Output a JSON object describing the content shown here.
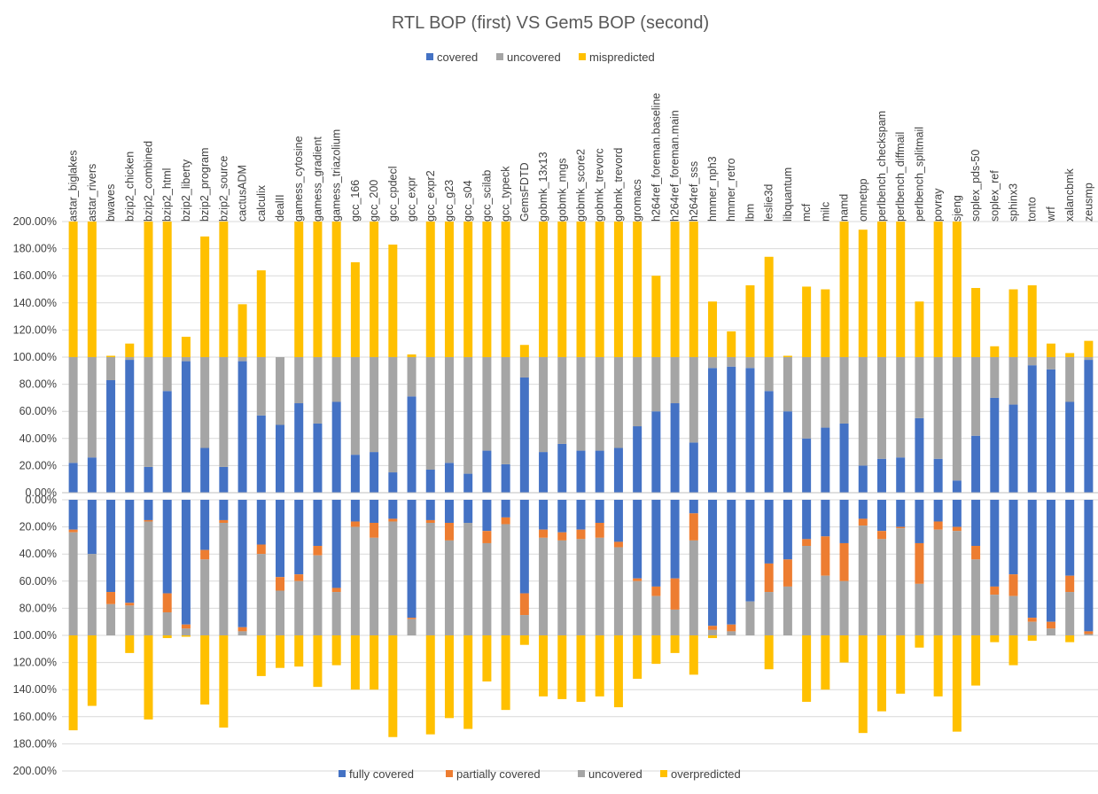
{
  "chart_data": [
    {
      "type": "bar",
      "stacked": true,
      "title": "RTL BOP (first) VS Gem5 BOP (second)",
      "legend_position": "top",
      "ylim": [
        0,
        200
      ],
      "y_ticks": [
        "200.00%",
        "180.00%",
        "160.00%",
        "140.00%",
        "120.00%",
        "100.00%",
        "80.00%",
        "60.00%",
        "40.00%",
        "20.00%",
        "0.00%"
      ],
      "grid": true,
      "categories": [
        "astar_biglakes",
        "astar_rivers",
        "bwaves",
        "bzip2_chicken",
        "bzip2_combined",
        "bzip2_html",
        "bzip2_liberty",
        "bzip2_program",
        "bzip2_source",
        "cactusADM",
        "calculix",
        "dealII",
        "gamess_cytosine",
        "gamess_gradient",
        "gamess_triazolium",
        "gcc_166",
        "gcc_200",
        "gcc_cpdecl",
        "gcc_expr",
        "gcc_expr2",
        "gcc_g23",
        "gcc_s04",
        "gcc_scilab",
        "gcc_typeck",
        "GemsFDTD",
        "gobmk_13x13",
        "gobmk_nngs",
        "gobmk_score2",
        "gobmk_trevorc",
        "gobmk_trevord",
        "gromacs",
        "h264ref_foreman.baseline",
        "h264ref_foreman.main",
        "h264ref_sss",
        "hmmer_nph3",
        "hmmer_retro",
        "lbm",
        "leslie3d",
        "libquantum",
        "mcf",
        "milc",
        "namd",
        "omnetpp",
        "perlbench_checkspam",
        "perlbench_diffmail",
        "perlbench_splitmail",
        "povray",
        "sjeng",
        "soplex_pds-50",
        "soplex_ref",
        "sphinx3",
        "tonto",
        "wrf",
        "xalancbmk",
        "zeusmp"
      ],
      "series": [
        {
          "name": "covered",
          "color": "#4472C4",
          "values": [
            22,
            26,
            83,
            98,
            19,
            75,
            97,
            33,
            19,
            97,
            57,
            50,
            66,
            51,
            67,
            28,
            30,
            15,
            71,
            17,
            22,
            14,
            31,
            21,
            85,
            30,
            36,
            31,
            31,
            33,
            49,
            60,
            66,
            37,
            92,
            93,
            92,
            75,
            60,
            40,
            48,
            51,
            20,
            25,
            26,
            55,
            25,
            9,
            42,
            70,
            65,
            94,
            91,
            67,
            98
          ]
        },
        {
          "name": "uncovered",
          "color": "#A5A5A5",
          "values": [
            78,
            74,
            17,
            2,
            81,
            25,
            3,
            67,
            81,
            3,
            43,
            50,
            34,
            49,
            33,
            72,
            70,
            85,
            29,
            83,
            78,
            86,
            69,
            79,
            15,
            70,
            64,
            69,
            69,
            67,
            51,
            40,
            34,
            63,
            8,
            7,
            8,
            25,
            40,
            60,
            52,
            49,
            80,
            75,
            74,
            45,
            75,
            91,
            58,
            30,
            35,
            6,
            9,
            33,
            2
          ]
        },
        {
          "name": "mispredicted",
          "color": "#FFC000",
          "values": [
            100,
            100,
            1,
            10,
            100,
            100,
            15,
            89,
            100,
            39,
            64,
            0,
            100,
            100,
            100,
            70,
            100,
            83,
            2,
            100,
            100,
            100,
            100,
            100,
            9,
            100,
            100,
            100,
            100,
            100,
            100,
            60,
            100,
            100,
            41,
            19,
            53,
            74,
            1,
            52,
            50,
            100,
            94,
            100,
            100,
            41,
            100,
            100,
            51,
            8,
            50,
            53,
            10,
            3,
            12
          ]
        }
      ]
    },
    {
      "type": "bar",
      "stacked": true,
      "title": "",
      "legend_position": "bottom",
      "ylim": [
        0,
        200
      ],
      "y_axis_inverted": true,
      "y_ticks": [
        "0.00%",
        "20.00%",
        "40.00%",
        "60.00%",
        "80.00%",
        "100.00%",
        "120.00%",
        "140.00%",
        "160.00%",
        "180.00%",
        "200.00%"
      ],
      "grid": true,
      "categories": [
        "astar_biglakes",
        "astar_rivers",
        "bwaves",
        "bzip2_chicken",
        "bzip2_combined",
        "bzip2_html",
        "bzip2_liberty",
        "bzip2_program",
        "bzip2_source",
        "cactusADM",
        "calculix",
        "dealII",
        "gamess_cytosine",
        "gamess_gradient",
        "gamess_triazolium",
        "gcc_166",
        "gcc_200",
        "gcc_cpdecl",
        "gcc_expr",
        "gcc_expr2",
        "gcc_g23",
        "gcc_s04",
        "gcc_scilab",
        "gcc_typeck",
        "GemsFDTD",
        "gobmk_13x13",
        "gobmk_nngs",
        "gobmk_score2",
        "gobmk_trevorc",
        "gobmk_trevord",
        "gromacs",
        "h264ref_foreman.baseline",
        "h264ref_foreman.main",
        "h264ref_sss",
        "hmmer_nph3",
        "hmmer_retro",
        "lbm",
        "leslie3d",
        "libquantum",
        "mcf",
        "milc",
        "namd",
        "omnetpp",
        "perlbench_checkspam",
        "perlbench_diffmail",
        "perlbench_splitmail",
        "povray",
        "sjeng",
        "soplex_pds-50",
        "soplex_ref",
        "sphinx3",
        "tonto",
        "wrf",
        "xalancbmk",
        "zeusmp"
      ],
      "series": [
        {
          "name": "fully covered",
          "color": "#4472C4",
          "values": [
            22,
            40,
            68,
            76,
            15,
            69,
            92,
            37,
            15,
            94,
            33,
            57,
            55,
            34,
            65,
            16,
            17,
            14,
            87,
            15,
            17,
            17,
            23,
            13,
            69,
            22,
            24,
            22,
            17,
            31,
            58,
            64,
            58,
            10,
            93,
            92,
            75,
            47,
            44,
            29,
            27,
            32,
            14,
            23,
            20,
            32,
            16,
            20,
            34,
            64,
            55,
            87,
            90,
            56,
            97
          ]
        },
        {
          "name": "partially covered",
          "color": "#ED7D31",
          "values": [
            2,
            0,
            9,
            2,
            1,
            14,
            3,
            7,
            2,
            3,
            7,
            10,
            5,
            7,
            3,
            4,
            11,
            2,
            1,
            2,
            13,
            0,
            9,
            5,
            16,
            6,
            6,
            7,
            11,
            4,
            2,
            7,
            23,
            20,
            3,
            5,
            0,
            21,
            20,
            5,
            29,
            28,
            5,
            6,
            1,
            30,
            6,
            3,
            10,
            6,
            16,
            3,
            5,
            12,
            2
          ]
        },
        {
          "name": "uncovered",
          "color": "#A5A5A5",
          "values": [
            76,
            60,
            23,
            22,
            84,
            17,
            5,
            56,
            83,
            3,
            60,
            33,
            40,
            59,
            32,
            80,
            72,
            84,
            12,
            83,
            70,
            83,
            68,
            82,
            15,
            72,
            70,
            71,
            72,
            65,
            40,
            29,
            19,
            70,
            4,
            3,
            25,
            32,
            36,
            66,
            44,
            40,
            81,
            71,
            79,
            38,
            78,
            77,
            56,
            30,
            29,
            10,
            5,
            32,
            1
          ]
        },
        {
          "name": "overpredicted",
          "color": "#FFC000",
          "values": [
            70,
            52,
            0,
            13,
            62,
            2,
            1,
            51,
            68,
            0,
            30,
            24,
            23,
            38,
            22,
            40,
            40,
            75,
            0,
            73,
            61,
            69,
            34,
            55,
            7,
            45,
            47,
            49,
            45,
            53,
            32,
            21,
            13,
            29,
            2,
            0,
            0,
            25,
            0,
            49,
            40,
            20,
            72,
            56,
            43,
            9,
            45,
            71,
            37,
            5,
            22,
            4,
            0,
            5,
            0
          ]
        }
      ]
    }
  ]
}
